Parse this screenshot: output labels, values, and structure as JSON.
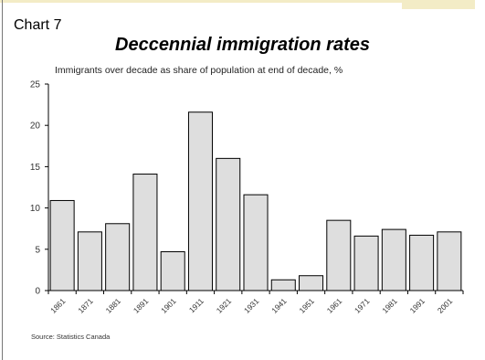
{
  "chart_number": "Chart  7",
  "source": "Source:  Statistics Canada",
  "colors": {
    "bar_fill": "#dedede",
    "bar_stroke": "#000000",
    "top_band": "#f3ecc6"
  },
  "chart_data": {
    "type": "bar",
    "title": "Deccennial immigration rates",
    "subtitle": "Immigrants over decade as share of population at end of decade, %",
    "xlabel": "",
    "ylabel": "",
    "ylim": [
      0,
      25
    ],
    "yticks": [
      0,
      5,
      10,
      15,
      20,
      25
    ],
    "grid": false,
    "categories": [
      "1861",
      "1871",
      "1881",
      "1891",
      "1901",
      "1911",
      "1921",
      "1931",
      "1941",
      "1951",
      "1961",
      "1971",
      "1981",
      "1991",
      "2001"
    ],
    "values": [
      10.9,
      7.1,
      8.1,
      14.1,
      4.7,
      21.6,
      16.0,
      11.6,
      1.3,
      1.8,
      8.5,
      6.6,
      7.4,
      6.7,
      7.1
    ]
  }
}
